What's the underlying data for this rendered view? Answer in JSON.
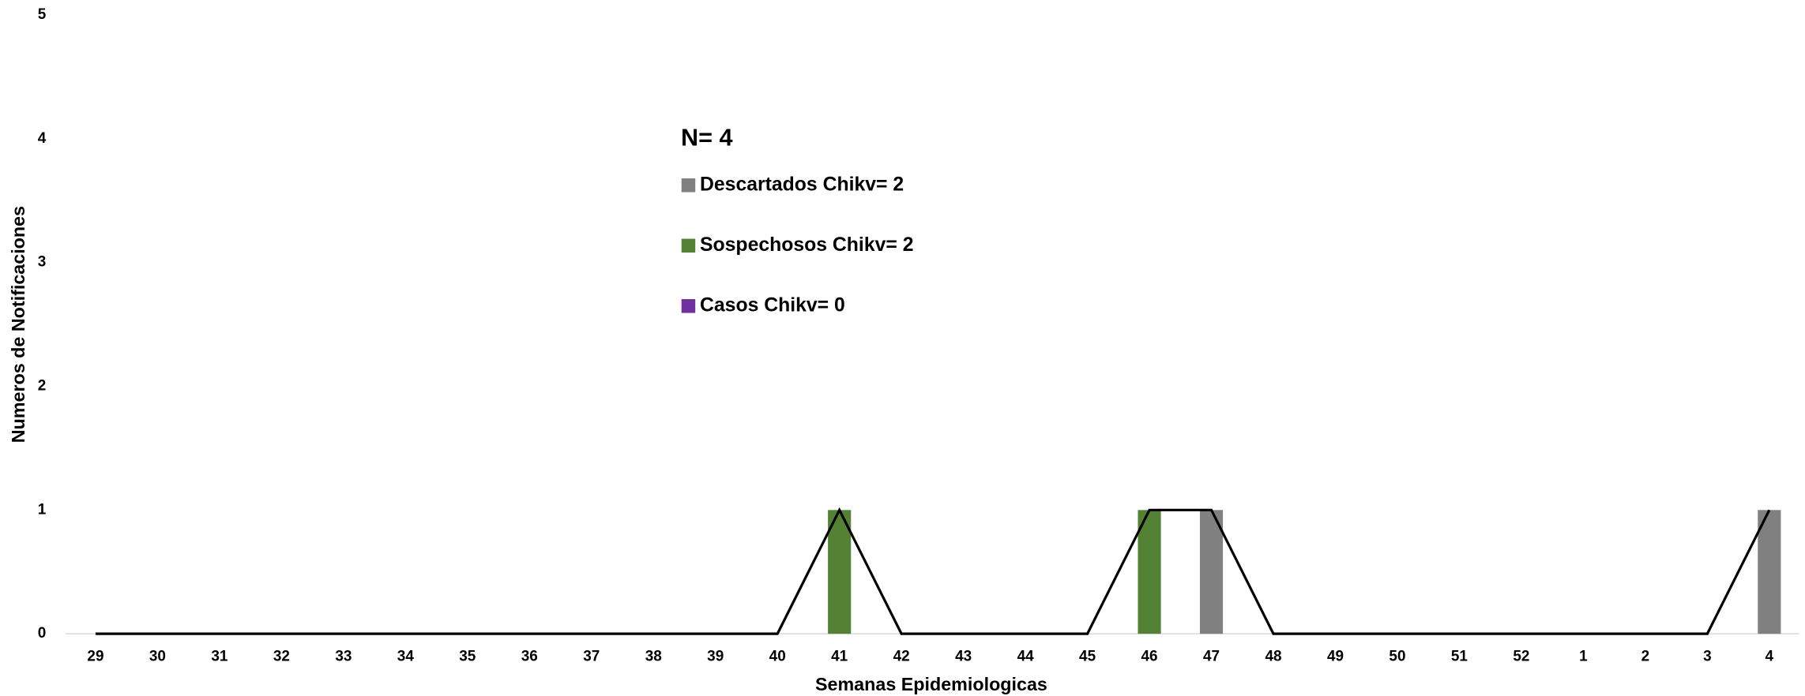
{
  "chart_data": {
    "type": "bar",
    "stacked": true,
    "x_label": "Semanas Epidemiologicas",
    "y_label": "Numeros de Notificaciones",
    "annotation": "N= 4",
    "categories": [
      "29",
      "30",
      "31",
      "32",
      "33",
      "34",
      "35",
      "36",
      "37",
      "38",
      "39",
      "40",
      "41",
      "42",
      "43",
      "44",
      "45",
      "46",
      "47",
      "48",
      "49",
      "50",
      "51",
      "52",
      "1",
      "2",
      "3",
      "4"
    ],
    "series": [
      {
        "name": "Descartados Chikv= 2",
        "color": "#808080",
        "values": [
          0,
          0,
          0,
          0,
          0,
          0,
          0,
          0,
          0,
          0,
          0,
          0,
          0,
          0,
          0,
          0,
          0,
          0,
          1,
          0,
          0,
          0,
          0,
          0,
          0,
          0,
          0,
          1
        ]
      },
      {
        "name": "Sospechosos Chikv= 2",
        "color": "#548235",
        "values": [
          0,
          0,
          0,
          0,
          0,
          0,
          0,
          0,
          0,
          0,
          0,
          0,
          1,
          0,
          0,
          0,
          0,
          1,
          0,
          0,
          0,
          0,
          0,
          0,
          0,
          0,
          0,
          0
        ]
      },
      {
        "name": "Casos Chikv= 0",
        "color": "#7030a0",
        "values": [
          0,
          0,
          0,
          0,
          0,
          0,
          0,
          0,
          0,
          0,
          0,
          0,
          0,
          0,
          0,
          0,
          0,
          0,
          0,
          0,
          0,
          0,
          0,
          0,
          0,
          0,
          0,
          0
        ]
      },
      {
        "type": "line",
        "color": "#000000",
        "values": [
          0,
          0,
          0,
          0,
          0,
          0,
          0,
          0,
          0,
          0,
          0,
          0,
          1,
          0,
          0,
          0,
          0,
          1,
          1,
          0,
          0,
          0,
          0,
          0,
          0,
          0,
          0,
          1
        ]
      }
    ],
    "ylim": [
      0,
      5
    ],
    "yticks": [
      0,
      1,
      2,
      3,
      4,
      5
    ],
    "grid": false
  }
}
